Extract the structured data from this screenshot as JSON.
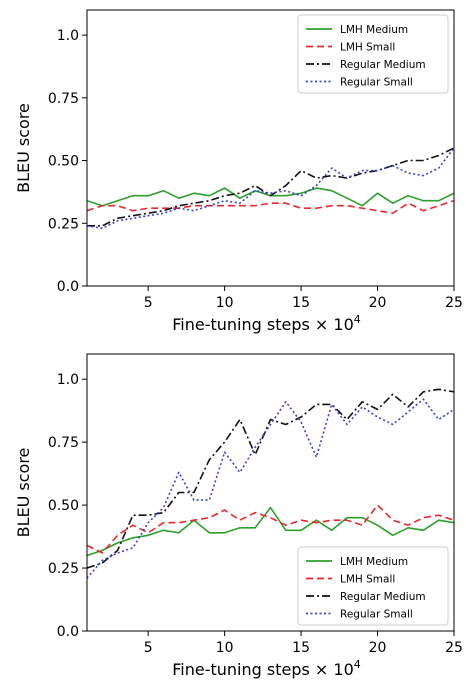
{
  "chart_data": [
    {
      "type": "line",
      "title": "",
      "xlabel": "Fine-tuning steps × 10",
      "xlabel_superscript": "4",
      "ylabel": "BLEU score",
      "xlim": [
        1,
        25
      ],
      "ylim": [
        0.0,
        1.1
      ],
      "xticks": [
        5,
        10,
        15,
        20,
        25
      ],
      "yticks": [
        0.0,
        0.25,
        0.5,
        0.75,
        1.0
      ],
      "xtick_labels": [
        "5",
        "10",
        "15",
        "20",
        "25"
      ],
      "ytick_labels": [
        "0.0",
        "0.25",
        "0.50",
        "0.75",
        "1.0"
      ],
      "grid": false,
      "legend_position": "top-right",
      "x": [
        1,
        2,
        3,
        4,
        5,
        6,
        7,
        8,
        9,
        10,
        11,
        12,
        13,
        14,
        15,
        16,
        17,
        18,
        19,
        20,
        21,
        22,
        23,
        24,
        25
      ],
      "series": [
        {
          "name": "LMH Medium",
          "color": "#2ca02c",
          "dash": "solid",
          "values": [
            0.34,
            0.32,
            0.34,
            0.36,
            0.36,
            0.38,
            0.35,
            0.37,
            0.36,
            0.39,
            0.35,
            0.38,
            0.36,
            0.36,
            0.37,
            0.39,
            0.38,
            0.35,
            0.32,
            0.37,
            0.33,
            0.36,
            0.34,
            0.34,
            0.37
          ]
        },
        {
          "name": "LMH Small",
          "color": "#e8272e",
          "dash": "dashed",
          "values": [
            0.3,
            0.32,
            0.32,
            0.3,
            0.31,
            0.31,
            0.31,
            0.32,
            0.32,
            0.32,
            0.32,
            0.32,
            0.33,
            0.33,
            0.31,
            0.31,
            0.32,
            0.32,
            0.31,
            0.3,
            0.29,
            0.33,
            0.3,
            0.32,
            0.34
          ]
        },
        {
          "name": "Regular Medium",
          "color": "#111111",
          "dash": "dashdot",
          "values": [
            0.24,
            0.24,
            0.27,
            0.28,
            0.29,
            0.3,
            0.32,
            0.33,
            0.34,
            0.36,
            0.37,
            0.4,
            0.36,
            0.4,
            0.46,
            0.43,
            0.44,
            0.43,
            0.45,
            0.46,
            0.48,
            0.5,
            0.5,
            0.52,
            0.55
          ]
        },
        {
          "name": "Regular Small",
          "color": "#3b3fd6",
          "dash": "dotted",
          "values": [
            0.24,
            0.23,
            0.26,
            0.27,
            0.28,
            0.29,
            0.31,
            0.3,
            0.32,
            0.34,
            0.33,
            0.38,
            0.37,
            0.38,
            0.36,
            0.4,
            0.47,
            0.43,
            0.46,
            0.46,
            0.48,
            0.45,
            0.44,
            0.47,
            0.55
          ]
        }
      ]
    },
    {
      "type": "line",
      "title": "",
      "xlabel": "Fine-tuning steps × 10",
      "xlabel_superscript": "4",
      "ylabel": "BLEU score",
      "xlim": [
        1,
        25
      ],
      "ylim": [
        0.0,
        1.1
      ],
      "xticks": [
        5,
        10,
        15,
        20,
        25
      ],
      "yticks": [
        0.0,
        0.25,
        0.5,
        0.75,
        1.0
      ],
      "xtick_labels": [
        "5",
        "10",
        "15",
        "20",
        "25"
      ],
      "ytick_labels": [
        "0.0",
        "0.25",
        "0.50",
        "0.75",
        "1.0"
      ],
      "grid": false,
      "legend_position": "bottom-right",
      "x": [
        1,
        2,
        3,
        4,
        5,
        6,
        7,
        8,
        9,
        10,
        11,
        12,
        13,
        14,
        15,
        16,
        17,
        18,
        19,
        20,
        21,
        22,
        23,
        24,
        25
      ],
      "series": [
        {
          "name": "LMH Medium",
          "color": "#2ca02c",
          "dash": "solid",
          "values": [
            0.3,
            0.32,
            0.35,
            0.37,
            0.38,
            0.4,
            0.39,
            0.44,
            0.39,
            0.39,
            0.41,
            0.41,
            0.49,
            0.4,
            0.4,
            0.44,
            0.4,
            0.45,
            0.45,
            0.42,
            0.38,
            0.41,
            0.4,
            0.44,
            0.43
          ]
        },
        {
          "name": "LMH Small",
          "color": "#e8272e",
          "dash": "dashed",
          "values": [
            0.34,
            0.31,
            0.38,
            0.42,
            0.39,
            0.43,
            0.43,
            0.44,
            0.45,
            0.48,
            0.44,
            0.47,
            0.45,
            0.42,
            0.44,
            0.43,
            0.44,
            0.44,
            0.42,
            0.5,
            0.44,
            0.42,
            0.45,
            0.46,
            0.44
          ]
        },
        {
          "name": "Regular Medium",
          "color": "#111111",
          "dash": "dashdot",
          "values": [
            0.25,
            0.27,
            0.32,
            0.46,
            0.46,
            0.47,
            0.55,
            0.55,
            0.68,
            0.75,
            0.84,
            0.7,
            0.84,
            0.82,
            0.85,
            0.9,
            0.9,
            0.84,
            0.91,
            0.88,
            0.94,
            0.89,
            0.95,
            0.96,
            0.95
          ]
        },
        {
          "name": "Regular Small",
          "color": "#3b3fd6",
          "dash": "dotted",
          "values": [
            0.21,
            0.28,
            0.31,
            0.33,
            0.43,
            0.49,
            0.63,
            0.52,
            0.52,
            0.71,
            0.63,
            0.73,
            0.82,
            0.91,
            0.83,
            0.69,
            0.9,
            0.82,
            0.89,
            0.85,
            0.82,
            0.87,
            0.92,
            0.84,
            0.88
          ]
        }
      ]
    }
  ]
}
